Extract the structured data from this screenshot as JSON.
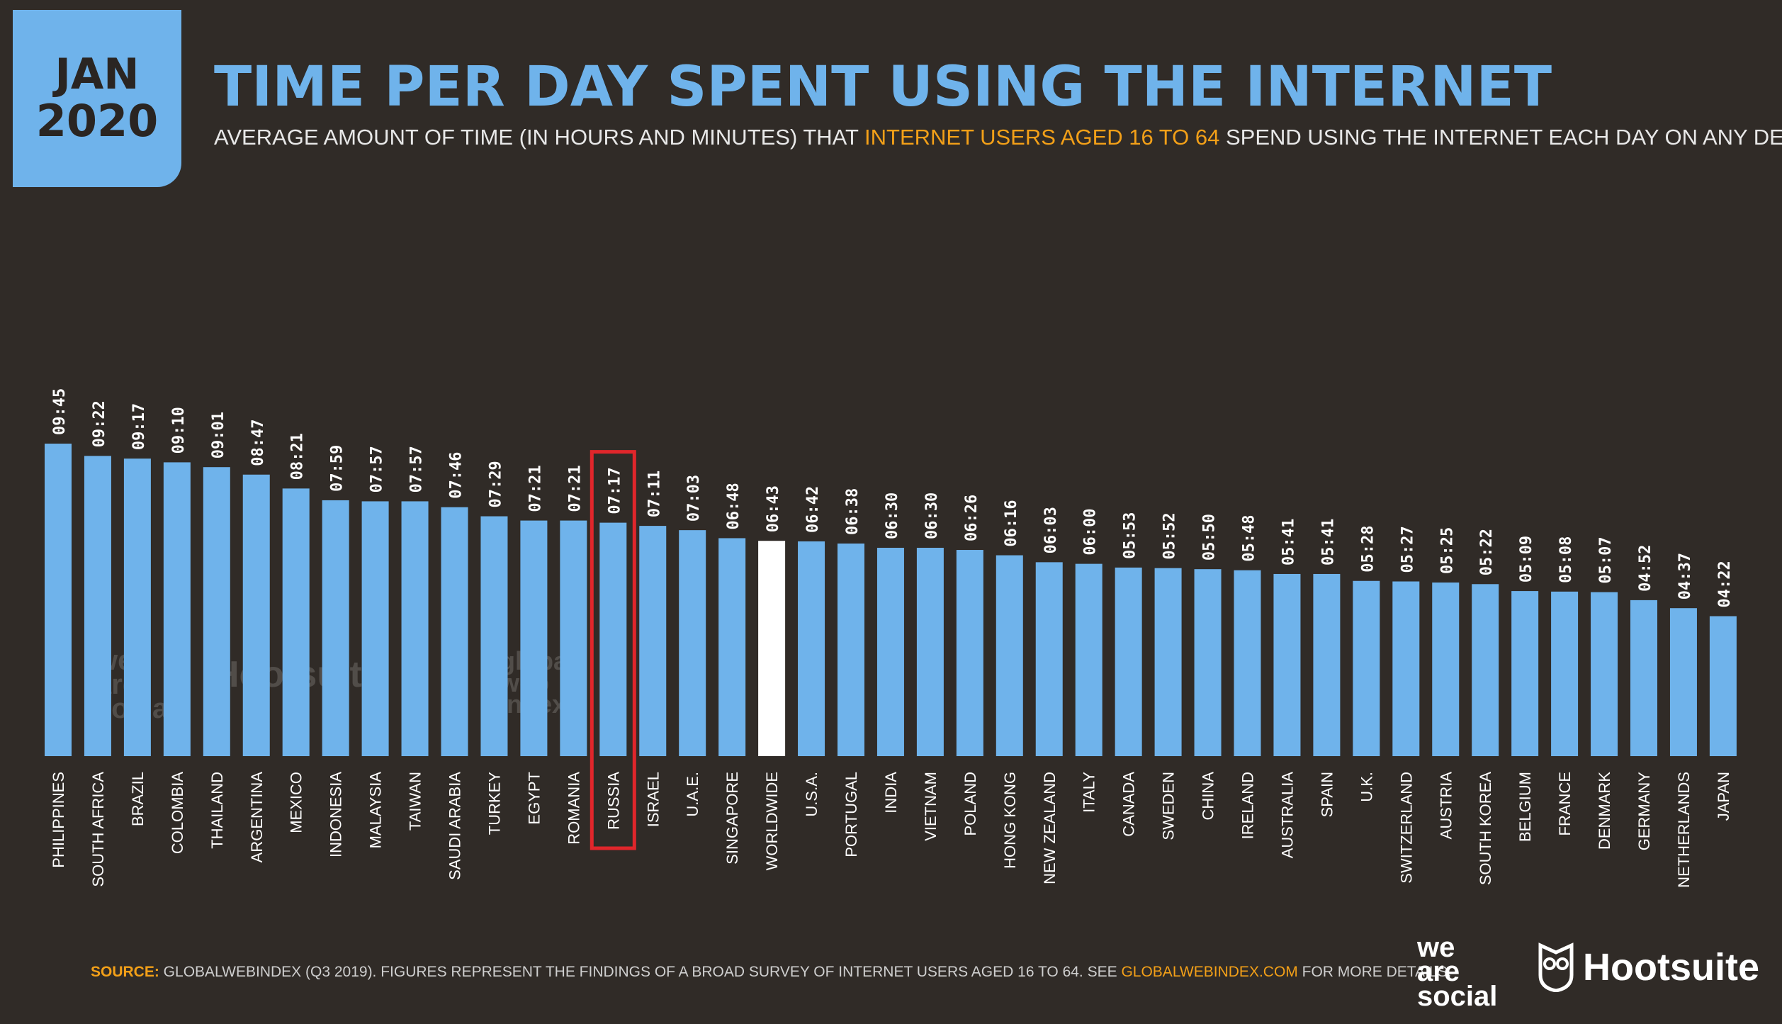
{
  "badge": {
    "month": "JAN",
    "year": "2020"
  },
  "header": {
    "title": "TIME PER DAY SPENT USING THE INTERNET",
    "subtitle_pre": "AVERAGE AMOUNT OF TIME (IN HOURS AND MINUTES) THAT ",
    "subtitle_highlight": "INTERNET USERS AGED 16 TO 64",
    "subtitle_post": " SPEND USING THE INTERNET EACH DAY ON ANY DEVICE"
  },
  "footer": {
    "source_label": "SOURCE:",
    "source_text": " GLOBALWEBINDEX (Q3 2019). FIGURES REPRESENT THE FINDINGS OF A BROAD SURVEY OF INTERNET USERS AGED 16 TO 64. SEE ",
    "source_link": "GLOBALWEBINDEX.COM",
    "source_tail": " FOR MORE DETAILS."
  },
  "watermarks": {
    "was": "we\nare\nsocial",
    "hootsuite": "Hootsuite",
    "gwi": "global\nweb\nindex"
  },
  "logos": {
    "was": "we\nare\nsocial",
    "hootsuite": "Hootsuite"
  },
  "colors": {
    "bar": "#6fb3eb",
    "highlight_bar": "#ffffff",
    "highlight_box": "#e0262b",
    "label": "#ffffff",
    "background": "#302b27",
    "accent": "#f3a018"
  },
  "chart_data": {
    "type": "bar",
    "title": "TIME PER DAY SPENT USING THE INTERNET",
    "xlabel": "",
    "ylabel": "",
    "value_format": "HH:MM",
    "highlight_white": "WORLDWIDE",
    "highlight_boxed": "RUSSIA",
    "categories": [
      "PHILIPPINES",
      "SOUTH AFRICA",
      "BRAZIL",
      "COLOMBIA",
      "THAILAND",
      "ARGENTINA",
      "MEXICO",
      "INDONESIA",
      "MALAYSIA",
      "TAIWAN",
      "SAUDI ARABIA",
      "TURKEY",
      "EGYPT",
      "ROMANIA",
      "RUSSIA",
      "ISRAEL",
      "U.A.E.",
      "SINGAPORE",
      "WORLDWIDE",
      "U.S.A.",
      "PORTUGAL",
      "INDIA",
      "VIETNAM",
      "POLAND",
      "HONG KONG",
      "NEW ZEALAND",
      "ITALY",
      "CANADA",
      "SWEDEN",
      "CHINA",
      "IRELAND",
      "AUSTRALIA",
      "SPAIN",
      "U.K.",
      "SWITZERLAND",
      "AUSTRIA",
      "SOUTH KOREA",
      "BELGIUM",
      "FRANCE",
      "DENMARK",
      "GERMANY",
      "NETHERLANDS",
      "JAPAN"
    ],
    "labels": [
      "09:45",
      "09:22",
      "09:17",
      "09:10",
      "09:01",
      "08:47",
      "08:21",
      "07:59",
      "07:57",
      "07:57",
      "07:46",
      "07:29",
      "07:21",
      "07:21",
      "07:17",
      "07:11",
      "07:03",
      "06:48",
      "06:43",
      "06:42",
      "06:38",
      "06:30",
      "06:30",
      "06:26",
      "06:16",
      "06:03",
      "06:00",
      "05:53",
      "05:52",
      "05:50",
      "05:48",
      "05:41",
      "05:41",
      "05:28",
      "05:27",
      "05:25",
      "05:22",
      "05:09",
      "05:08",
      "05:07",
      "04:52",
      "04:37",
      "04:22"
    ],
    "values_minutes": [
      585,
      562,
      557,
      550,
      541,
      527,
      501,
      479,
      477,
      477,
      466,
      449,
      441,
      441,
      437,
      431,
      423,
      408,
      403,
      402,
      398,
      390,
      390,
      386,
      376,
      363,
      360,
      353,
      352,
      350,
      348,
      341,
      341,
      328,
      327,
      325,
      322,
      309,
      308,
      307,
      292,
      277,
      262
    ]
  }
}
